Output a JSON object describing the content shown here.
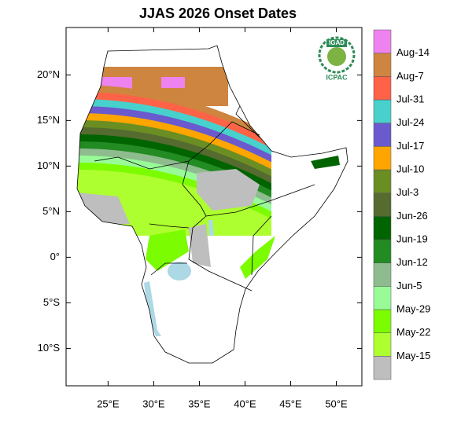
{
  "chart_data": {
    "type": "map",
    "title": "JJAS 2026 Onset Dates",
    "xlim": [
      20.4,
      52.8
    ],
    "ylim": [
      -14.1,
      25.2
    ],
    "xticks": [
      {
        "value": 25,
        "label": "25°E"
      },
      {
        "value": 30,
        "label": "30°E"
      },
      {
        "value": 35,
        "label": "35°E"
      },
      {
        "value": 40,
        "label": "40°E"
      },
      {
        "value": 45,
        "label": "45°E"
      },
      {
        "value": 50,
        "label": "50°E"
      }
    ],
    "yticks": [
      {
        "value": 20,
        "label": "20°N"
      },
      {
        "value": 15,
        "label": "15°N"
      },
      {
        "value": 10,
        "label": "10°N"
      },
      {
        "value": 5,
        "label": "5°N"
      },
      {
        "value": 0,
        "label": "0°"
      },
      {
        "value": -5,
        "label": "5°S"
      },
      {
        "value": -10,
        "label": "10°S"
      }
    ],
    "legend": {
      "labels": [
        "May-15",
        "May-22",
        "May-29",
        "Jun-5",
        "Jun-12",
        "Jun-19",
        "Jun-26",
        "Jul-3",
        "Jul-10",
        "Jul-17",
        "Jul-24",
        "Jul-31",
        "Aug-7",
        "Aug-14"
      ],
      "colors": [
        "#bebebe",
        "#adff2f",
        "#7cfc00",
        "#98fb98",
        "#8fbc8f",
        "#228b22",
        "#006400",
        "#556b2f",
        "#6b8e23",
        "#ffa500",
        "#6a5acd",
        "#48d1cc",
        "#ff6347",
        "#cd853f",
        "#ee82ee"
      ]
    },
    "logo": {
      "top": "IGAD",
      "bottom": "ICPAC"
    }
  }
}
